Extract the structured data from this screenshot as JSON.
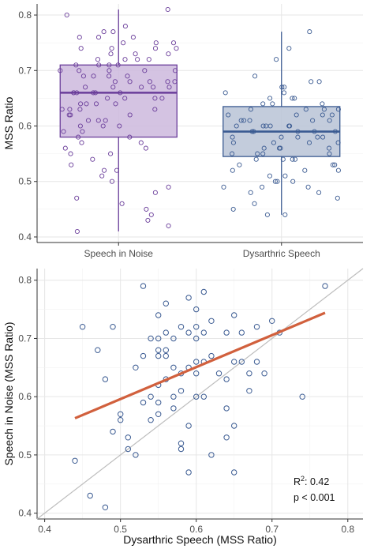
{
  "chart_data": [
    {
      "type": "box",
      "xlabel": "",
      "ylabel": "MSS Ratio",
      "ylim": [
        0.39,
        0.82
      ],
      "yticks": [
        "0.4",
        "0.5",
        "0.6",
        "0.7",
        "0.8"
      ],
      "grid": true,
      "categories": [
        "Speech in Noise",
        "Dysarthric Speech"
      ],
      "boxes": [
        {
          "category": "Speech in Noise",
          "min": 0.41,
          "q1": 0.58,
          "median": 0.66,
          "q3": 0.71,
          "max": 0.81,
          "color": "#6a3d9a",
          "fill": "#cdb8dd",
          "points": [
            0.81,
            0.8,
            0.78,
            0.77,
            0.77,
            0.76,
            0.76,
            0.76,
            0.75,
            0.75,
            0.75,
            0.74,
            0.74,
            0.74,
            0.74,
            0.73,
            0.73,
            0.73,
            0.72,
            0.72,
            0.72,
            0.72,
            0.71,
            0.71,
            0.71,
            0.71,
            0.7,
            0.7,
            0.7,
            0.7,
            0.7,
            0.69,
            0.69,
            0.69,
            0.69,
            0.68,
            0.68,
            0.68,
            0.68,
            0.68,
            0.67,
            0.67,
            0.67,
            0.67,
            0.67,
            0.66,
            0.66,
            0.66,
            0.66,
            0.66,
            0.66,
            0.65,
            0.65,
            0.65,
            0.65,
            0.64,
            0.64,
            0.64,
            0.64,
            0.63,
            0.63,
            0.63,
            0.63,
            0.62,
            0.62,
            0.62,
            0.61,
            0.61,
            0.61,
            0.6,
            0.6,
            0.6,
            0.59,
            0.59,
            0.58,
            0.58,
            0.57,
            0.57,
            0.56,
            0.56,
            0.55,
            0.55,
            0.54,
            0.53,
            0.52,
            0.52,
            0.51,
            0.5,
            0.49,
            0.48,
            0.47,
            0.46,
            0.45,
            0.44,
            0.43,
            0.42,
            0.41
          ]
        },
        {
          "category": "Dysarthric Speech",
          "min": 0.44,
          "q1": 0.545,
          "median": 0.59,
          "q3": 0.635,
          "max": 0.77,
          "color": "#3b5b92",
          "fill": "#b9c3d6",
          "points": [
            0.77,
            0.74,
            0.72,
            0.69,
            0.68,
            0.68,
            0.67,
            0.67,
            0.66,
            0.66,
            0.65,
            0.65,
            0.65,
            0.64,
            0.64,
            0.64,
            0.63,
            0.63,
            0.63,
            0.63,
            0.62,
            0.62,
            0.62,
            0.62,
            0.61,
            0.61,
            0.61,
            0.61,
            0.61,
            0.6,
            0.6,
            0.6,
            0.6,
            0.6,
            0.6,
            0.59,
            0.59,
            0.59,
            0.59,
            0.59,
            0.58,
            0.58,
            0.58,
            0.58,
            0.58,
            0.57,
            0.57,
            0.57,
            0.57,
            0.56,
            0.56,
            0.56,
            0.56,
            0.55,
            0.55,
            0.55,
            0.55,
            0.54,
            0.54,
            0.54,
            0.54,
            0.53,
            0.53,
            0.53,
            0.52,
            0.52,
            0.52,
            0.51,
            0.51,
            0.5,
            0.5,
            0.5,
            0.49,
            0.49,
            0.49,
            0.48,
            0.48,
            0.47,
            0.46,
            0.45,
            0.44,
            0.44
          ]
        }
      ]
    },
    {
      "type": "scatter",
      "xlabel": "Dysarthric Speech (MSS Ratio)",
      "ylabel": "Speech in Noise (MSS Ratio)",
      "xlim": [
        0.39,
        0.82
      ],
      "ylim": [
        0.39,
        0.82
      ],
      "xticks": [
        "0.4",
        "0.5",
        "0.6",
        "0.7",
        "0.8"
      ],
      "yticks": [
        "0.4",
        "0.5",
        "0.6",
        "0.7",
        "0.8"
      ],
      "grid": true,
      "points_color": "#3b5b92",
      "points": [
        [
          0.44,
          0.49
        ],
        [
          0.45,
          0.72
        ],
        [
          0.46,
          0.43
        ],
        [
          0.47,
          0.68
        ],
        [
          0.48,
          0.63
        ],
        [
          0.48,
          0.41
        ],
        [
          0.49,
          0.72
        ],
        [
          0.49,
          0.54
        ],
        [
          0.5,
          0.57
        ],
        [
          0.5,
          0.56
        ],
        [
          0.51,
          0.53
        ],
        [
          0.51,
          0.51
        ],
        [
          0.52,
          0.5
        ],
        [
          0.52,
          0.65
        ],
        [
          0.53,
          0.79
        ],
        [
          0.53,
          0.59
        ],
        [
          0.53,
          0.67
        ],
        [
          0.54,
          0.7
        ],
        [
          0.54,
          0.6
        ],
        [
          0.54,
          0.56
        ],
        [
          0.55,
          0.74
        ],
        [
          0.55,
          0.7
        ],
        [
          0.55,
          0.68
        ],
        [
          0.55,
          0.67
        ],
        [
          0.55,
          0.62
        ],
        [
          0.55,
          0.59
        ],
        [
          0.55,
          0.57
        ],
        [
          0.56,
          0.76
        ],
        [
          0.56,
          0.71
        ],
        [
          0.56,
          0.68
        ],
        [
          0.56,
          0.67
        ],
        [
          0.56,
          0.63
        ],
        [
          0.57,
          0.7
        ],
        [
          0.57,
          0.65
        ],
        [
          0.57,
          0.6
        ],
        [
          0.57,
          0.58
        ],
        [
          0.58,
          0.72
        ],
        [
          0.58,
          0.64
        ],
        [
          0.58,
          0.61
        ],
        [
          0.58,
          0.52
        ],
        [
          0.58,
          0.51
        ],
        [
          0.59,
          0.77
        ],
        [
          0.59,
          0.71
        ],
        [
          0.59,
          0.65
        ],
        [
          0.59,
          0.55
        ],
        [
          0.59,
          0.47
        ],
        [
          0.6,
          0.75
        ],
        [
          0.6,
          0.72
        ],
        [
          0.6,
          0.7
        ],
        [
          0.6,
          0.66
        ],
        [
          0.6,
          0.64
        ],
        [
          0.6,
          0.6
        ],
        [
          0.61,
          0.78
        ],
        [
          0.61,
          0.71
        ],
        [
          0.61,
          0.66
        ],
        [
          0.61,
          0.6
        ],
        [
          0.62,
          0.73
        ],
        [
          0.62,
          0.67
        ],
        [
          0.62,
          0.5
        ],
        [
          0.63,
          0.64
        ],
        [
          0.64,
          0.71
        ],
        [
          0.64,
          0.63
        ],
        [
          0.64,
          0.58
        ],
        [
          0.64,
          0.53
        ],
        [
          0.65,
          0.74
        ],
        [
          0.65,
          0.66
        ],
        [
          0.65,
          0.55
        ],
        [
          0.65,
          0.47
        ],
        [
          0.66,
          0.71
        ],
        [
          0.66,
          0.66
        ],
        [
          0.67,
          0.64
        ],
        [
          0.67,
          0.61
        ],
        [
          0.68,
          0.72
        ],
        [
          0.68,
          0.66
        ],
        [
          0.69,
          0.64
        ],
        [
          0.7,
          0.73
        ],
        [
          0.71,
          0.71
        ],
        [
          0.74,
          0.6
        ],
        [
          0.77,
          0.79
        ]
      ],
      "regression": {
        "x": [
          0.44,
          0.77
        ],
        "y": [
          0.563,
          0.744
        ],
        "color": "#d1603d"
      },
      "identity_line": {
        "x": [
          0.39,
          0.82
        ],
        "y": [
          0.39,
          0.82
        ],
        "color": "#bdbdbd"
      },
      "annotation": {
        "r2_base": "R",
        "r2_sup": "2",
        "r2_value": ": 0.42",
        "p_text": "p < 0.001"
      }
    }
  ]
}
